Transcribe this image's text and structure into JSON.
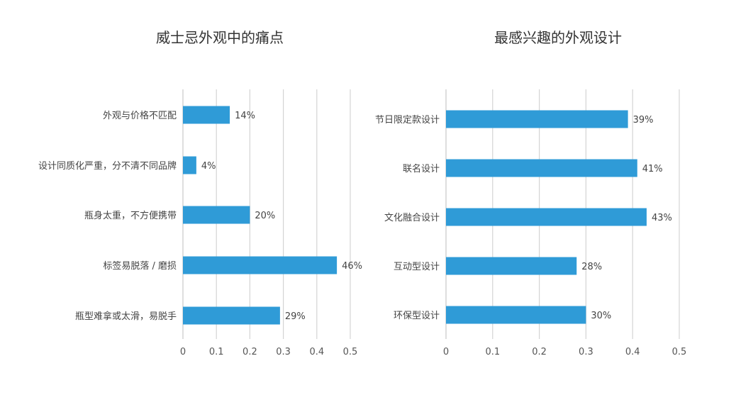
{
  "chart_data": [
    {
      "type": "bar",
      "orientation": "horizontal",
      "title": "威士忌外观中的痛点",
      "categories": [
        "外观与价格不匹配",
        "设计同质化严重，分不清不同品牌",
        "瓶身太重，不方便携带",
        "标签易脱落 / 磨损",
        "瓶型难拿或太滑，易脱手"
      ],
      "values": [
        0.14,
        0.04,
        0.2,
        0.46,
        0.29
      ],
      "data_labels": [
        "14%",
        "4%",
        "20%",
        "46%",
        "29%"
      ],
      "xlim": [
        0,
        0.5
      ],
      "xticks": [
        "0",
        "0.1",
        "0.2",
        "0.3",
        "0.4",
        "0.5"
      ],
      "grid": true,
      "color": "#2f9bd7"
    },
    {
      "type": "bar",
      "orientation": "horizontal",
      "title": "最感兴趣的外观设计",
      "categories": [
        "节日限定款设计",
        "联名设计",
        "文化融合设计",
        "互动型设计",
        "环保型设计"
      ],
      "values": [
        0.39,
        0.41,
        0.43,
        0.28,
        0.3
      ],
      "data_labels": [
        "39%",
        "41%",
        "43%",
        "28%",
        "30%"
      ],
      "xlim": [
        0,
        0.5
      ],
      "xticks": [
        "0",
        "0.1",
        "0.2",
        "0.3",
        "0.4",
        "0.5"
      ],
      "grid": true,
      "color": "#2f9bd7"
    }
  ]
}
